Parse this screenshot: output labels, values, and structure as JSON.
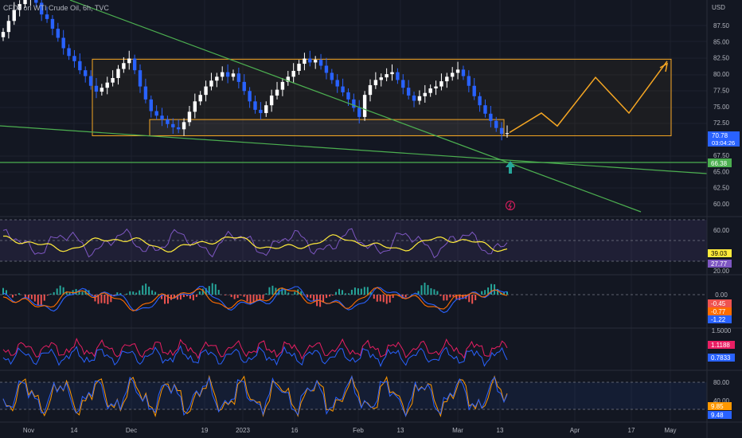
{
  "title": "CFDs on WTI Crude Oil, 6h, TVC",
  "price_axis_unit": "USD",
  "colors": {
    "background": "#131722",
    "candle_up": "#ffffff",
    "candle_down": "#2962ff",
    "trend_line": "#4caf50",
    "range_box": "#f5a623",
    "rsi_line": "#7e57c2",
    "rsi_ma": "#ffeb3b",
    "macd": "#2962ff",
    "signal": "#ff6d00",
    "hist_up": "#26a69a",
    "hist_down": "#ef5350",
    "cci_a": "#e91e63",
    "cci_b": "#2962ff",
    "stoch_k": "#ff9800",
    "stoch_d": "#2962ff"
  },
  "x_axis": {
    "labels": [
      "Nov",
      "14",
      "Dec",
      "19",
      "2023",
      "16",
      "Feb",
      "13",
      "Mar",
      "13",
      "Apr",
      "17",
      "May"
    ]
  },
  "chart_data": [
    {
      "type": "candlestick",
      "panel": "price",
      "description_values": "approximate closes, 6h bars",
      "x_start": "Nov",
      "x_end": "Mar 13",
      "closes": [
        86.5,
        88.2,
        89.9,
        90.8,
        91.5,
        92.4,
        91.0,
        89.2,
        88.5,
        87.0,
        85.6,
        84.0,
        82.8,
        82.0,
        80.6,
        79.7,
        78.2,
        77.3,
        77.9,
        78.7,
        79.4,
        80.8,
        81.7,
        82.4,
        80.6,
        78.1,
        76.1,
        74.3,
        73.6,
        73.0,
        72.3,
        71.8,
        71.5,
        72.6,
        74.2,
        75.8,
        76.8,
        78.1,
        79.0,
        79.6,
        80.3,
        79.6,
        80.1,
        78.8,
        77.4,
        75.8,
        74.5,
        74.0,
        75.2,
        76.7,
        77.6,
        78.8,
        79.6,
        80.5,
        81.6,
        82.4,
        81.8,
        82.2,
        81.3,
        80.2,
        79.1,
        78.1,
        77.2,
        76.1,
        74.8,
        73.4,
        76.8,
        78.3,
        79.1,
        79.5,
        80.0,
        80.3,
        79.1,
        77.9,
        76.7,
        75.9,
        76.6,
        77.1,
        77.8,
        78.1,
        78.9,
        79.6,
        80.2,
        80.7,
        79.7,
        78.2,
        76.6,
        75.2,
        73.9,
        72.8,
        71.7,
        70.8,
        70.9
      ],
      "last_close": "70.78",
      "countdown": "03:04:26",
      "y_ticks": [
        "87.50",
        "85.00",
        "82.50",
        "80.00",
        "77.50",
        "75.00",
        "72.50",
        "67.50",
        "65.00",
        "62.50",
        "60.00"
      ],
      "horizontal_level": "66.38",
      "projection": [
        [
          71,
          "Mar 13"
        ],
        [
          74,
          "Mar 20"
        ],
        [
          72,
          "Mar 25"
        ],
        [
          79.5,
          "Apr 7"
        ],
        [
          74,
          "Apr 15"
        ],
        [
          82,
          "Apr 28"
        ]
      ],
      "range_high": 82.3,
      "range_low": 70.5,
      "support_zone": [
        70.5,
        73.0
      ]
    },
    {
      "type": "line",
      "panel": "rsi",
      "series": [
        {
          "name": "RSI"
        },
        {
          "name": "RSI MA"
        }
      ],
      "y_ticks": [
        "60.00",
        "20.00"
      ],
      "last_values": [
        "39.03",
        "27.77"
      ]
    },
    {
      "type": "line",
      "panel": "macd",
      "series": [
        {
          "name": "MACD"
        },
        {
          "name": "Signal"
        },
        {
          "name": "Histogram"
        }
      ],
      "y_ticks": [
        "0.00"
      ],
      "last_values": [
        "-0.45",
        "-0.77",
        "-1.22"
      ]
    },
    {
      "type": "line",
      "panel": "ratio",
      "y_ticks": [
        "1.5000"
      ],
      "last_values": [
        "1.1188",
        "0.7833"
      ]
    },
    {
      "type": "line",
      "panel": "stochastic",
      "y_ticks": [
        "80.00",
        "40.00"
      ],
      "last_values": [
        "9.85",
        "9.48"
      ]
    }
  ]
}
